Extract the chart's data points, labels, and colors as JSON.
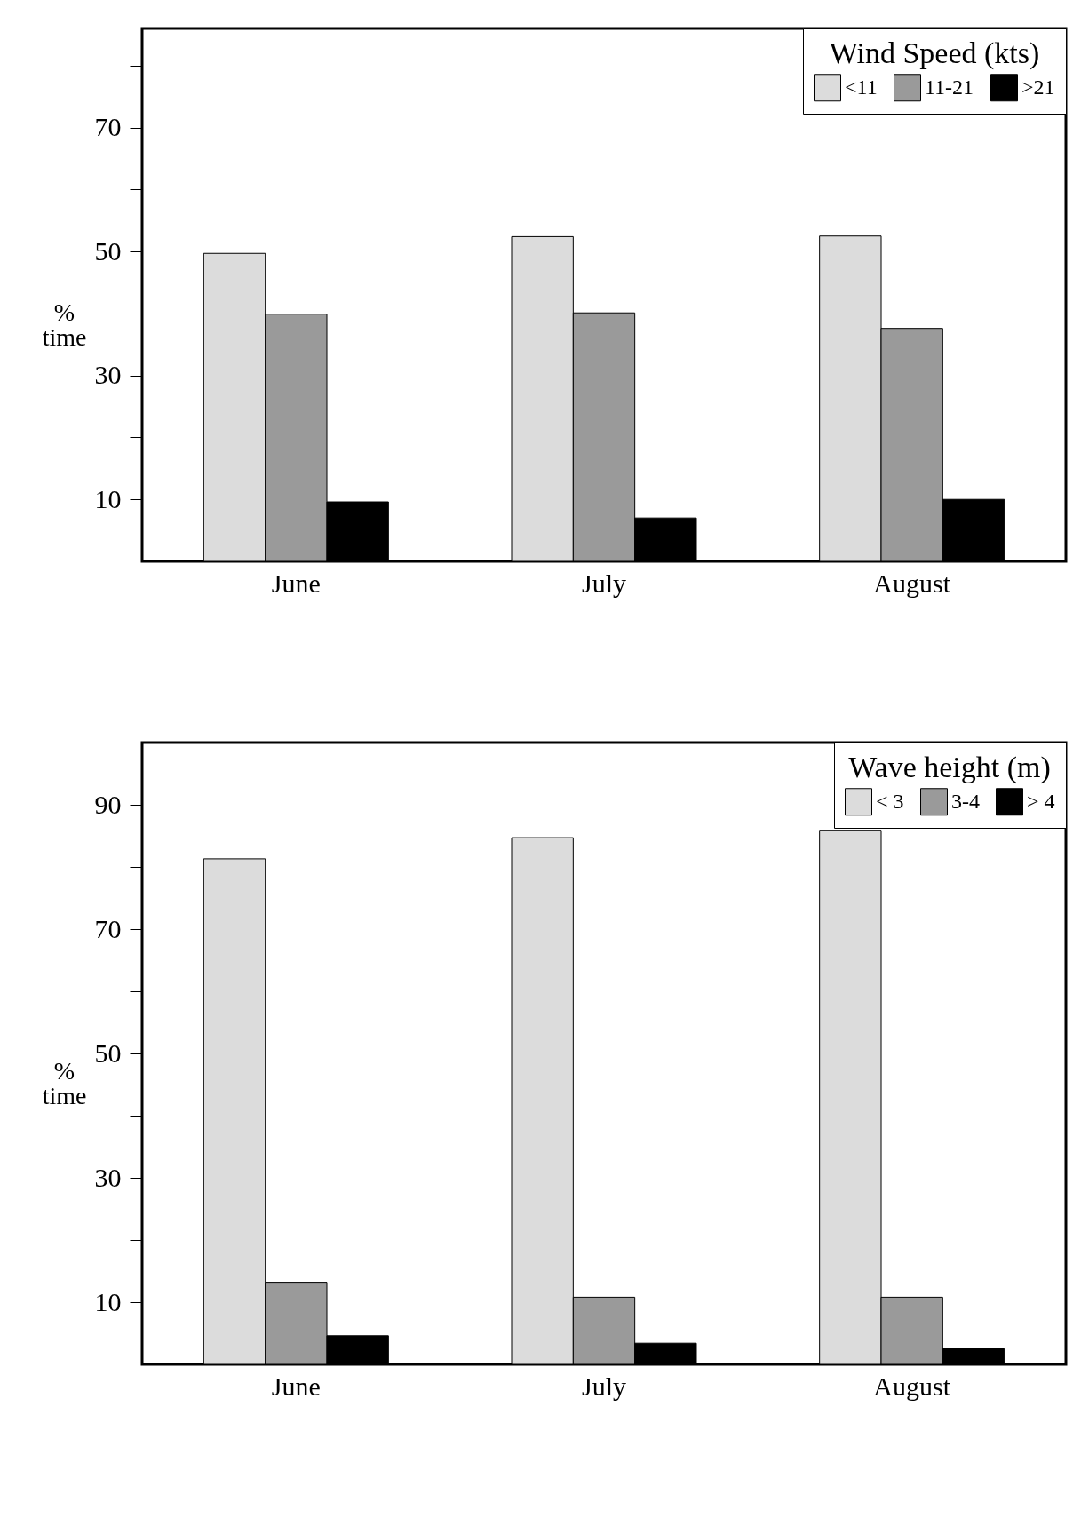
{
  "chart_data": [
    {
      "type": "bar",
      "categories": [
        "June",
        "July",
        "August"
      ],
      "ylabel": "% time",
      "legend_title": "Wind Speed (kts)",
      "legend": "top right",
      "grid": false,
      "series": [
        {
          "name": "<11",
          "color": "#dcdcdc",
          "values": [
            49.7,
            52.4,
            52.5
          ]
        },
        {
          "name": "11-21",
          "color": "#9a9a9a",
          "values": [
            39.9,
            40.1,
            37.6
          ]
        },
        {
          "name": ">21",
          "color": "#000000",
          "values": [
            9.6,
            7,
            10
          ]
        }
      ],
      "ylim": [
        0,
        86
      ],
      "yticks": [
        10,
        {
          "value": 20,
          "label": null
        },
        30,
        {
          "value": 40,
          "label": null
        },
        50,
        {
          "value": 60,
          "label": null
        },
        70,
        {
          "value": 80,
          "label": null
        }
      ]
    },
    {
      "type": "bar",
      "categories": [
        "June",
        "July",
        "August"
      ],
      "ylabel": "% time",
      "legend_title": "Wave height (m)",
      "legend": "top right",
      "grid": false,
      "series": [
        {
          "name": "< 3",
          "color": "#dcdcdc",
          "values": [
            81.3,
            84.7,
            85.9
          ]
        },
        {
          "name": "3-4",
          "color": "#9a9a9a",
          "values": [
            13.2,
            10.8,
            10.8
          ]
        },
        {
          "name": "> 4",
          "color": "#000000",
          "values": [
            4.6,
            3.4,
            2.5
          ]
        }
      ],
      "ylim": [
        0,
        100
      ],
      "yticks": [
        10,
        {
          "value": 20,
          "label": null
        },
        30,
        {
          "value": 40,
          "label": null
        },
        50,
        {
          "value": 60,
          "label": null
        },
        70,
        {
          "value": 80,
          "label": null
        },
        90
      ]
    }
  ]
}
